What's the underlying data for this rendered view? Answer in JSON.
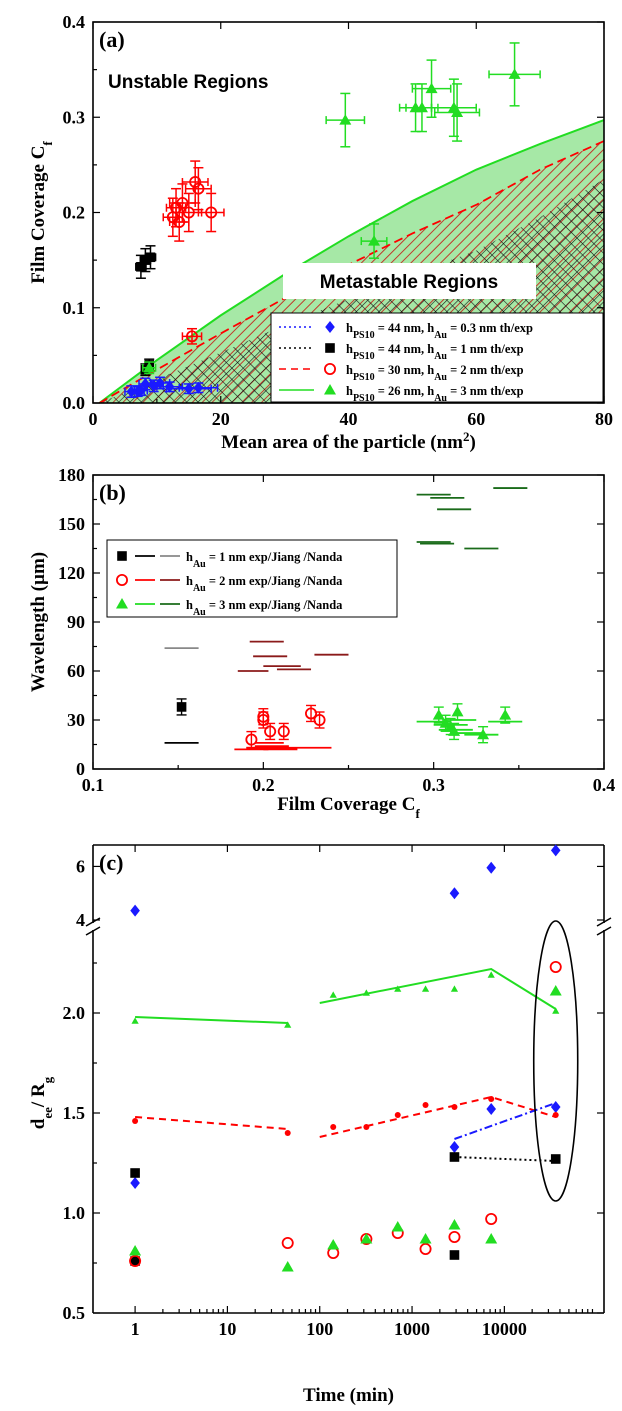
{
  "chart_data": [
    {
      "panel": "(a)",
      "type": "scatter",
      "xlabel": "Mean area of the particle (nm2)",
      "xlabel_main": "Mean area of the particle (nm",
      "xlabel_sup": "2",
      "xlabel_end": ")",
      "ylabel": "Film Coverage Cf",
      "ylabel_main": "Film Coverage C",
      "ylabel_sub": "f",
      "xlim": [
        0,
        80
      ],
      "ylim": [
        0,
        0.4
      ],
      "xticks": [
        "0",
        "20",
        "40",
        "60",
        "80"
      ],
      "yticks": [
        "0.0",
        "0.1",
        "0.2",
        "0.3",
        "0.4"
      ],
      "annotations": [
        "Unstable Regions",
        "Metastable Regions"
      ],
      "legend_position": "bottom-right",
      "legend": [
        {
          "pre": "h",
          "sub1": "PS10",
          "mid": " = 44 nm, h",
          "sub2": "Au",
          "post": " = 0.3 nm th/exp",
          "color": "#1a1aff",
          "marker": "diamond",
          "line": "dotted"
        },
        {
          "pre": "h",
          "sub1": "PS10",
          "mid": " = 44 nm, h",
          "sub2": "Au",
          "post": " = 1 nm th/exp",
          "color": "#000000",
          "marker": "square",
          "line": "dotted"
        },
        {
          "pre": "h",
          "sub1": "PS10",
          "mid": " = 30 nm, h",
          "sub2": "Au",
          "post": " = 2 nm th/exp",
          "color": "#ff0000",
          "marker": "circle-open",
          "line": "dashed"
        },
        {
          "pre": "h",
          "sub1": "PS10",
          "mid": " = 26 nm, h",
          "sub2": "Au",
          "post": " = 3 nm th/exp",
          "color": "#22dd22",
          "marker": "triangle",
          "line": "solid"
        }
      ],
      "theory_curves": {
        "x": [
          1,
          10,
          20,
          30,
          40,
          50,
          60,
          70,
          80
        ],
        "hAu_3nm": [
          0.0,
          0.045,
          0.092,
          0.135,
          0.175,
          0.212,
          0.245,
          0.272,
          0.297
        ],
        "hAu_2nm": [
          0.0,
          0.035,
          0.073,
          0.11,
          0.145,
          0.178,
          0.208,
          0.245,
          0.275
        ],
        "hAu_1nm": [
          0.0,
          0.025,
          0.053,
          0.082,
          0.109,
          0.135,
          0.16,
          0.195,
          0.235
        ]
      },
      "series": [
        {
          "name": "hAu = 0.3 nm",
          "color": "#1a1aff",
          "marker": "diamond",
          "points": [
            [
              6,
              0.012
            ],
            [
              7,
              0.012
            ],
            [
              7.5,
              0.013
            ],
            [
              8.2,
              0.02
            ],
            [
              9.5,
              0.018
            ],
            [
              10.5,
              0.021
            ],
            [
              12,
              0.017
            ],
            [
              15,
              0.015
            ],
            [
              16.5,
              0.016
            ]
          ],
          "xerr": [
            1,
            1,
            1,
            1,
            1.5,
            1.5,
            2,
            3.5,
            3
          ],
          "yerr": [
            0.006,
            0.005,
            0.005,
            0.006,
            0.006,
            0.006,
            0.005,
            0.005,
            0.005
          ]
        },
        {
          "name": "hAu = 1 nm",
          "color": "#000000",
          "marker": "square",
          "points": [
            [
              7.5,
              0.143
            ],
            [
              8.2,
              0.15
            ],
            [
              9,
              0.153
            ],
            [
              8.2,
              0.035
            ],
            [
              8.8,
              0.04
            ]
          ],
          "xerr": [
            0.8,
            0.8,
            0.8,
            0.6,
            0.6
          ],
          "yerr": [
            0.012,
            0.012,
            0.012,
            0.006,
            0.006
          ]
        },
        {
          "name": "hAu = 2 nm",
          "color": "#ff0000",
          "marker": "circle-open",
          "points": [
            [
              12.5,
              0.195
            ],
            [
              13,
              0.205
            ],
            [
              13.5,
              0.19
            ],
            [
              14,
              0.21
            ],
            [
              15,
              0.2
            ],
            [
              16,
              0.232
            ],
            [
              16.5,
              0.225
            ],
            [
              18.5,
              0.2
            ],
            [
              15.5,
              0.07
            ]
          ],
          "xerr": [
            1.5,
            1.5,
            1.5,
            2,
            2,
            2,
            2,
            2,
            1.5
          ],
          "yerr": [
            0.02,
            0.02,
            0.02,
            0.02,
            0.02,
            0.022,
            0.022,
            0.02,
            0.008
          ]
        },
        {
          "name": "hAu = 3 nm",
          "color": "#22dd22",
          "marker": "triangle",
          "points": [
            [
              8.8,
              0.037
            ],
            [
              44,
              0.17
            ],
            [
              39.5,
              0.297
            ],
            [
              50.5,
              0.31
            ],
            [
              51.5,
              0.31
            ],
            [
              53,
              0.33
            ],
            [
              56.5,
              0.31
            ],
            [
              57,
              0.305
            ],
            [
              66,
              0.345
            ]
          ],
          "xerr": [
            1,
            2,
            3,
            2.5,
            2.5,
            3,
            3.5,
            3.5,
            4
          ],
          "yerr": [
            0.006,
            0.018,
            0.028,
            0.025,
            0.025,
            0.03,
            0.03,
            0.03,
            0.033
          ]
        }
      ]
    },
    {
      "panel": "(b)",
      "type": "scatter",
      "xlabel": "Film Coverage Cf",
      "xlabel_main": "Film Coverage C",
      "xlabel_sub": "f",
      "ylabel": "Wavelength (µm)",
      "xlim": [
        0.1,
        0.4
      ],
      "ylim": [
        0,
        180
      ],
      "xticks": [
        "0.1",
        "0.2",
        "0.3",
        "0.4"
      ],
      "yticks": [
        "0",
        "30",
        "60",
        "90",
        "120",
        "150",
        "180"
      ],
      "legend_position": "top-left",
      "legend": [
        {
          "pre": "h",
          "sub": "Au",
          "post": " = 1 nm exp/Jiang /Nanda",
          "marker": "square",
          "color": "#000000",
          "line1": "#000000",
          "line2": "#888888"
        },
        {
          "pre": "h",
          "sub": "Au",
          "post": " = 2 nm exp/Jiang /Nanda",
          "marker": "circle-open",
          "color": "#ff0000",
          "line1": "#ff0000",
          "line2": "#8b1a1a"
        },
        {
          "pre": "h",
          "sub": "Au",
          "post": " = 3 nm exp/Jiang /Nanda",
          "marker": "triangle",
          "color": "#22dd22",
          "line1": "#22dd22",
          "line2": "#1a6b1a"
        }
      ],
      "series": [
        {
          "name": "hAu = 1 nm exp",
          "color": "#000000",
          "marker": "square",
          "points": [
            [
              0.152,
              38
            ]
          ]
        },
        {
          "name": "hAu = 2 nm exp",
          "color": "#ff0000",
          "marker": "circle-open",
          "points": [
            [
              0.193,
              18
            ],
            [
              0.2,
              32
            ],
            [
              0.2,
              30
            ],
            [
              0.204,
              23
            ],
            [
              0.212,
              23
            ],
            [
              0.228,
              34
            ],
            [
              0.233,
              30
            ]
          ]
        },
        {
          "name": "hAu = 3 nm exp",
          "color": "#22dd22",
          "marker": "triangle",
          "points": [
            [
              0.303,
              33
            ],
            [
              0.307,
              28
            ],
            [
              0.31,
              26
            ],
            [
              0.312,
              23
            ],
            [
              0.314,
              35
            ],
            [
              0.329,
              21
            ],
            [
              0.342,
              33
            ]
          ]
        }
      ],
      "segments": [
        {
          "color": "#000000",
          "y": 16,
          "x1": 0.142,
          "x2": 0.162
        },
        {
          "color": "#888888",
          "y": 74,
          "x1": 0.142,
          "x2": 0.162
        },
        {
          "color": "#ff0000",
          "y": 12,
          "x1": 0.183,
          "x2": 0.203
        },
        {
          "color": "#ff0000",
          "y": 13,
          "x1": 0.19,
          "x2": 0.212
        },
        {
          "color": "#ff0000",
          "y": 14,
          "x1": 0.195,
          "x2": 0.215
        },
        {
          "color": "#ff0000",
          "y": 16,
          "x1": 0.195,
          "x2": 0.212
        },
        {
          "color": "#ff0000",
          "y": 12,
          "x1": 0.2,
          "x2": 0.22
        },
        {
          "color": "#ff0000",
          "y": 13,
          "x1": 0.21,
          "x2": 0.24
        },
        {
          "color": "#8b1a1a",
          "y": 60,
          "x1": 0.185,
          "x2": 0.203
        },
        {
          "color": "#8b1a1a",
          "y": 78,
          "x1": 0.192,
          "x2": 0.212
        },
        {
          "color": "#8b1a1a",
          "y": 69,
          "x1": 0.194,
          "x2": 0.214
        },
        {
          "color": "#8b1a1a",
          "y": 63,
          "x1": 0.2,
          "x2": 0.222
        },
        {
          "color": "#8b1a1a",
          "y": 61,
          "x1": 0.208,
          "x2": 0.228
        },
        {
          "color": "#8b1a1a",
          "y": 70,
          "x1": 0.23,
          "x2": 0.25
        },
        {
          "color": "#22dd22",
          "y": 29,
          "x1": 0.29,
          "x2": 0.31
        },
        {
          "color": "#22dd22",
          "y": 27,
          "x1": 0.3,
          "x2": 0.32
        },
        {
          "color": "#22dd22",
          "y": 24,
          "x1": 0.303,
          "x2": 0.323
        },
        {
          "color": "#22dd22",
          "y": 22,
          "x1": 0.31,
          "x2": 0.33
        },
        {
          "color": "#22dd22",
          "y": 30,
          "x1": 0.305,
          "x2": 0.325
        },
        {
          "color": "#22dd22",
          "y": 21,
          "x1": 0.318,
          "x2": 0.338
        },
        {
          "color": "#22dd22",
          "y": 29,
          "x1": 0.332,
          "x2": 0.352
        },
        {
          "color": "#1a6b1a",
          "y": 139,
          "x1": 0.29,
          "x2": 0.31
        },
        {
          "color": "#1a6b1a",
          "y": 138,
          "x1": 0.292,
          "x2": 0.312
        },
        {
          "color": "#1a6b1a",
          "y": 168,
          "x1": 0.29,
          "x2": 0.31
        },
        {
          "color": "#1a6b1a",
          "y": 166,
          "x1": 0.298,
          "x2": 0.318
        },
        {
          "color": "#1a6b1a",
          "y": 159,
          "x1": 0.302,
          "x2": 0.322
        },
        {
          "color": "#1a6b1a",
          "y": 135,
          "x1": 0.318,
          "x2": 0.338
        },
        {
          "color": "#1a6b1a",
          "y": 172,
          "x1": 0.335,
          "x2": 0.355
        }
      ]
    },
    {
      "panel": "(c)",
      "type": "scatter",
      "xlabel": "Time (min)",
      "ylabel": "dee/ Rg",
      "ylabel_d": "d",
      "ylabel_ee": "ee",
      "ylabel_slash": "/ R",
      "ylabel_g": "g",
      "xscale": "log",
      "xlim": [
        0.35,
        120000
      ],
      "xticks": [
        "1",
        "10",
        "100",
        "1000",
        "10000"
      ],
      "ylim_lower": [
        0.5,
        2.4
      ],
      "ylim_upper": [
        4,
        6.8
      ],
      "yticks_lower": [
        "0.5",
        "1.0",
        "1.5",
        "2.0"
      ],
      "yticks_upper": [
        "4",
        "6"
      ],
      "broken_axis": true,
      "series": [
        {
          "name": "blue upper",
          "color": "#1a1aff",
          "marker": "diamond",
          "points": [
            [
              1,
              4.35
            ],
            [
              2880,
              5.0
            ],
            [
              7200,
              5.95
            ],
            [
              36000,
              6.6
            ]
          ]
        },
        {
          "name": "blue lower",
          "color": "#1a1aff",
          "marker": "diamond",
          "points": [
            [
              1,
              1.15
            ],
            [
              2880,
              1.33
            ],
            [
              7200,
              1.52
            ],
            [
              36000,
              1.53
            ]
          ]
        },
        {
          "name": "black Rg",
          "color": "#000000",
          "marker": "square",
          "points": [
            [
              1,
              1.2
            ],
            [
              2880,
              1.28
            ],
            [
              36000,
              1.27
            ]
          ]
        },
        {
          "name": "black exp",
          "color": "#000000",
          "marker": "square",
          "points": [
            [
              1,
              0.76
            ],
            [
              2880,
              0.79
            ]
          ]
        },
        {
          "name": "red Rg",
          "color": "#ff0000",
          "marker": "dot",
          "points": [
            [
              1,
              1.46
            ],
            [
              45,
              1.4
            ],
            [
              140,
              1.43
            ],
            [
              320,
              1.43
            ],
            [
              700,
              1.49
            ],
            [
              1400,
              1.54
            ],
            [
              2880,
              1.53
            ],
            [
              7200,
              1.57
            ],
            [
              36000,
              1.49
            ]
          ]
        },
        {
          "name": "red exp",
          "color": "#ff0000",
          "marker": "circle-open",
          "points": [
            [
              1,
              0.76
            ],
            [
              45,
              0.85
            ],
            [
              140,
              0.8
            ],
            [
              320,
              0.87
            ],
            [
              700,
              0.9
            ],
            [
              1400,
              0.82
            ],
            [
              2880,
              0.88
            ],
            [
              7200,
              0.97
            ],
            [
              36000,
              2.23
            ]
          ]
        },
        {
          "name": "green Rg",
          "color": "#22dd22",
          "marker": "triangle-small",
          "points": [
            [
              1,
              1.96
            ],
            [
              45,
              1.94
            ],
            [
              140,
              2.09
            ],
            [
              320,
              2.1
            ],
            [
              700,
              2.12
            ],
            [
              1400,
              2.12
            ],
            [
              2880,
              2.12
            ],
            [
              7200,
              2.19
            ],
            [
              36000,
              2.01
            ]
          ]
        },
        {
          "name": "green exp",
          "color": "#22dd22",
          "marker": "triangle",
          "points": [
            [
              1,
              0.81
            ],
            [
              45,
              0.73
            ],
            [
              140,
              0.84
            ],
            [
              320,
              0.87
            ],
            [
              700,
              0.93
            ],
            [
              1400,
              0.87
            ],
            [
              2880,
              0.94
            ],
            [
              7200,
              0.87
            ],
            [
              36000,
              2.11
            ]
          ]
        }
      ],
      "lines": [
        {
          "color": "#22dd22",
          "style": "solid",
          "points": [
            [
              1,
              1.98
            ],
            [
              45,
              1.95
            ]
          ]
        },
        {
          "color": "#22dd22",
          "style": "solid",
          "points": [
            [
              100,
              2.05
            ],
            [
              7200,
              2.22
            ],
            [
              36000,
              2.02
            ]
          ]
        },
        {
          "color": "#ff0000",
          "style": "dashed",
          "points": [
            [
              1,
              1.48
            ],
            [
              45,
              1.42
            ]
          ]
        },
        {
          "color": "#ff0000",
          "style": "dashed",
          "points": [
            [
              100,
              1.38
            ],
            [
              7200,
              1.58
            ],
            [
              36000,
              1.48
            ]
          ]
        },
        {
          "color": "#1a1aff",
          "style": "dashdot",
          "points": [
            [
              2880,
              1.37
            ],
            [
              36000,
              1.55
            ]
          ]
        },
        {
          "color": "#000000",
          "style": "dotted",
          "points": [
            [
              2880,
              1.28
            ],
            [
              36000,
              1.26
            ]
          ]
        }
      ],
      "highlight_ellipse": {
        "x": 36000,
        "y_low": 1.1,
        "y_high": 2.4
      }
    }
  ]
}
